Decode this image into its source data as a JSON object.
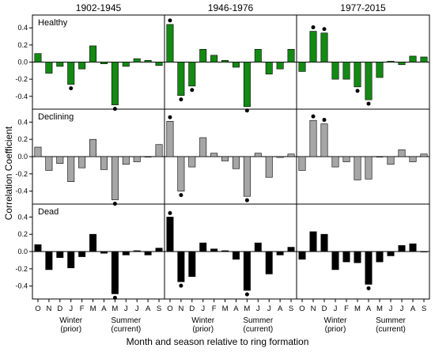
{
  "chart_data": {
    "type": "bar",
    "ylabel": "Correlation Coefficient",
    "xlabel": "Month and season relative to ring formation",
    "months": [
      "O",
      "N",
      "D",
      "J",
      "F",
      "M",
      "A",
      "M",
      "J",
      "J",
      "A",
      "S"
    ],
    "season_labels": {
      "winter": [
        "Winter",
        "(prior)"
      ],
      "summer": [
        "Summer",
        "(current)"
      ]
    },
    "ylim": [
      -0.55,
      0.55
    ],
    "yticks": [
      -0.4,
      -0.2,
      0.0,
      0.2,
      0.4
    ],
    "ytick_labels": [
      "-0.4",
      "-0.2",
      "0.0",
      "0.2",
      "0.4"
    ],
    "periods": [
      "1902-1945",
      "1946-1976",
      "1977-2015"
    ],
    "rows": [
      {
        "name": "Healthy",
        "color": "#138a13",
        "values": [
          [
            0.1,
            -0.13,
            -0.05,
            -0.26,
            -0.08,
            0.19,
            -0.02,
            -0.5,
            -0.05,
            0.04,
            0.02,
            -0.04
          ],
          [
            0.44,
            -0.39,
            -0.28,
            0.15,
            0.08,
            0.02,
            -0.06,
            -0.52,
            0.15,
            -0.14,
            -0.08,
            0.15
          ],
          [
            -0.11,
            0.36,
            0.34,
            -0.2,
            -0.2,
            -0.29,
            -0.44,
            -0.18,
            0.01,
            -0.03,
            0.07,
            0.06
          ]
        ],
        "significant": [
          [
            false,
            false,
            false,
            true,
            false,
            false,
            false,
            true,
            false,
            false,
            false,
            false
          ],
          [
            true,
            true,
            true,
            false,
            false,
            false,
            false,
            true,
            false,
            false,
            false,
            false
          ],
          [
            false,
            true,
            true,
            false,
            false,
            true,
            true,
            false,
            false,
            false,
            false,
            false
          ]
        ]
      },
      {
        "name": "Declining",
        "color": "#a6a6a6",
        "values": [
          [
            0.11,
            -0.16,
            -0.08,
            -0.29,
            -0.13,
            0.2,
            -0.15,
            -0.5,
            -0.09,
            -0.06,
            0.0,
            0.14
          ],
          [
            0.41,
            -0.4,
            -0.12,
            0.22,
            0.04,
            -0.05,
            -0.14,
            -0.46,
            0.04,
            -0.24,
            -0.01,
            0.03
          ],
          [
            -0.16,
            0.42,
            0.38,
            -0.12,
            -0.06,
            -0.27,
            -0.26,
            0.0,
            -0.09,
            0.08,
            -0.06,
            0.03
          ]
        ],
        "significant": [
          [
            false,
            false,
            false,
            false,
            false,
            false,
            false,
            true,
            false,
            false,
            false,
            false
          ],
          [
            true,
            true,
            false,
            false,
            false,
            false,
            false,
            true,
            false,
            false,
            false,
            false
          ],
          [
            false,
            true,
            true,
            false,
            false,
            false,
            false,
            false,
            false,
            false,
            false,
            false
          ]
        ]
      },
      {
        "name": "Dead",
        "color": "#000000",
        "values": [
          [
            0.08,
            -0.21,
            -0.07,
            -0.19,
            -0.06,
            0.2,
            -0.02,
            -0.49,
            -0.04,
            0.01,
            -0.04,
            0.04
          ],
          [
            0.4,
            -0.35,
            -0.29,
            0.1,
            0.03,
            0.01,
            -0.09,
            -0.45,
            0.1,
            -0.26,
            -0.04,
            0.05
          ],
          [
            -0.09,
            0.23,
            0.2,
            -0.21,
            -0.12,
            -0.13,
            -0.38,
            -0.12,
            -0.05,
            0.07,
            0.09,
            0.0
          ]
        ],
        "significant": [
          [
            false,
            false,
            false,
            false,
            false,
            false,
            false,
            true,
            false,
            false,
            false,
            false
          ],
          [
            true,
            true,
            false,
            false,
            false,
            false,
            false,
            true,
            false,
            false,
            false,
            false
          ],
          [
            false,
            false,
            false,
            false,
            false,
            false,
            true,
            false,
            false,
            false,
            false,
            false
          ]
        ]
      }
    ]
  }
}
